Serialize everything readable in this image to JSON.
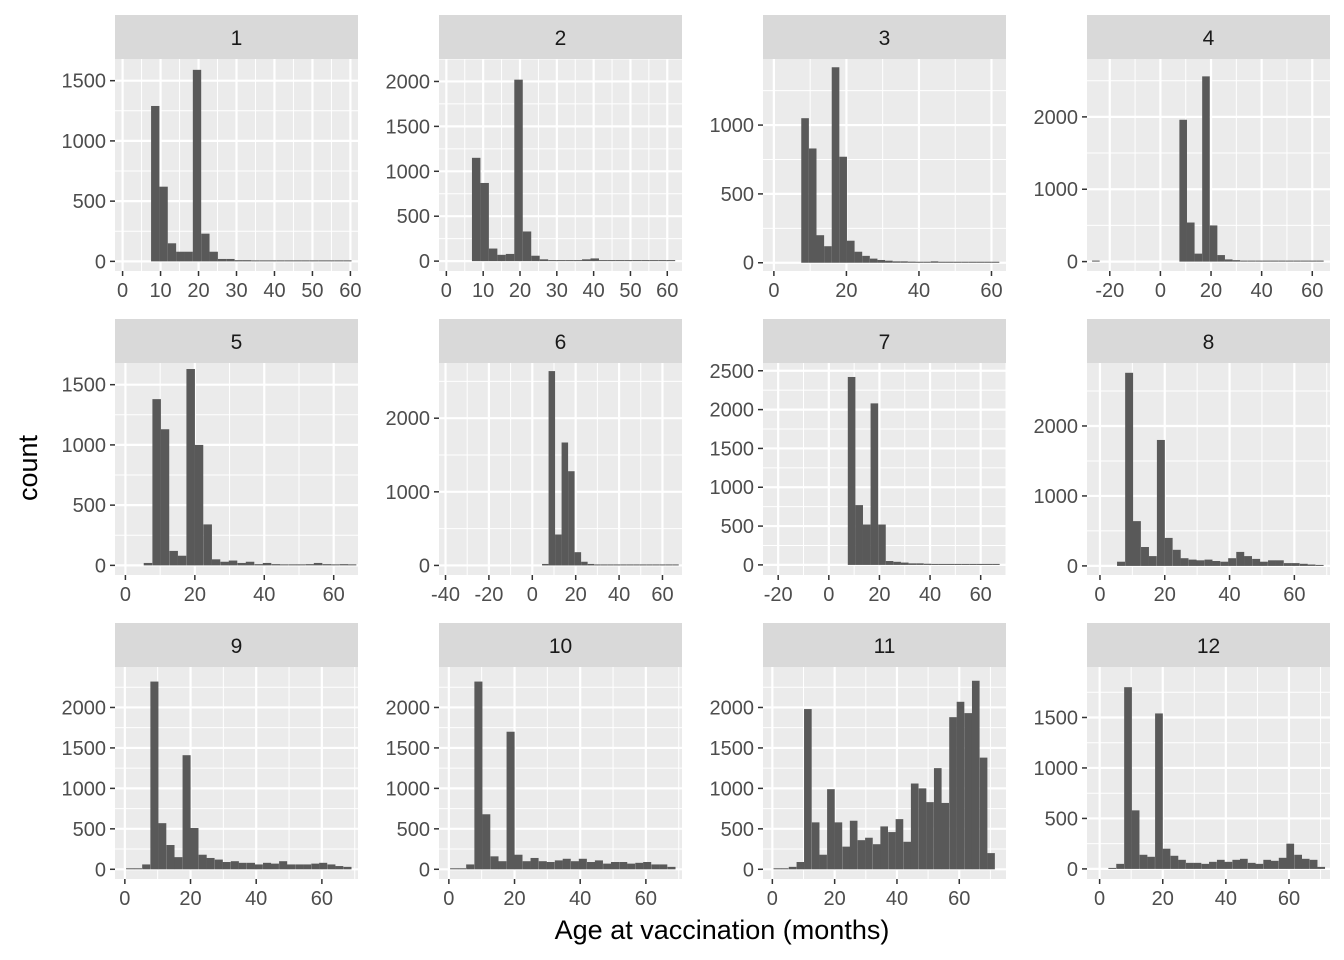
{
  "figure": {
    "xlabel": "Age at vaccination (months)",
    "ylabel": "count",
    "colors": {
      "panel_bg": "#ebebeb",
      "strip_bg": "#d9d9d9",
      "grid": "#ffffff",
      "bar": "#595959",
      "tick": "#333333",
      "tick_label": "#4d4d4d"
    }
  },
  "chart_data": [
    {
      "type": "bar",
      "facet": "1",
      "bin_width": 2.2,
      "xlim": [
        -2,
        62
      ],
      "ylim": [
        -80,
        1680
      ],
      "xticks": [
        0,
        10,
        20,
        30,
        40,
        50,
        60
      ],
      "yticks": [
        0,
        500,
        1000,
        1500
      ],
      "x": [
        8.6,
        10.8,
        13.0,
        15.2,
        17.4,
        19.6,
        21.8,
        24.0,
        26.2,
        28.4,
        30.6,
        32.8,
        35.0,
        37.2,
        39.4,
        41.6,
        43.8,
        46.0,
        48.2,
        50.4,
        52.6,
        54.8,
        57.0,
        59.2
      ],
      "values": [
        1290,
        620,
        150,
        80,
        80,
        1590,
        230,
        80,
        20,
        20,
        10,
        10,
        5,
        5,
        5,
        5,
        5,
        3,
        3,
        3,
        3,
        3,
        8,
        3
      ]
    },
    {
      "type": "bar",
      "facet": "2",
      "bin_width": 2.3,
      "xlim": [
        -2,
        64
      ],
      "ylim": [
        -110,
        2250
      ],
      "xticks": [
        0,
        10,
        20,
        30,
        40,
        50,
        60
      ],
      "yticks": [
        0,
        500,
        1000,
        1500,
        2000
      ],
      "x": [
        8.1,
        10.4,
        12.7,
        15.0,
        17.3,
        19.6,
        21.9,
        24.2,
        26.5,
        28.8,
        31.1,
        33.4,
        35.7,
        38.0,
        40.3,
        42.6,
        44.9,
        47.2,
        49.5,
        51.8,
        54.1,
        56.4,
        58.7,
        61.0
      ],
      "values": [
        1150,
        870,
        140,
        70,
        80,
        2020,
        330,
        60,
        20,
        10,
        10,
        10,
        5,
        20,
        30,
        10,
        5,
        5,
        5,
        3,
        3,
        3,
        3,
        5
      ]
    },
    {
      "type": "bar",
      "facet": "3",
      "bin_width": 2.1,
      "xlim": [
        -3,
        64
      ],
      "ylim": [
        -60,
        1480
      ],
      "xticks": [
        0,
        20,
        40,
        60
      ],
      "yticks": [
        0,
        500,
        1000
      ],
      "x": [
        8.6,
        10.7,
        12.8,
        14.9,
        17.0,
        19.1,
        21.2,
        23.3,
        25.4,
        27.5,
        29.6,
        31.7,
        33.8,
        35.9,
        38.0,
        40.1,
        42.2,
        44.3,
        46.4,
        48.5,
        50.6,
        52.7,
        54.8,
        56.9,
        59.0,
        61.1
      ],
      "values": [
        1050,
        830,
        200,
        120,
        1420,
        770,
        160,
        80,
        50,
        30,
        20,
        15,
        10,
        10,
        8,
        5,
        5,
        10,
        5,
        5,
        3,
        5,
        5,
        3,
        3,
        3
      ]
    },
    {
      "type": "bar",
      "facet": "4",
      "bin_width": 3.0,
      "xlim": [
        -29,
        67
      ],
      "ylim": [
        -130,
        2800
      ],
      "xticks": [
        -20,
        0,
        20,
        40,
        60
      ],
      "yticks": [
        0,
        1000,
        2000
      ],
      "x": [
        -25.5,
        9.0,
        12.0,
        15.0,
        18.0,
        21.0,
        24.0,
        27.0,
        30.0,
        33.0,
        36.0,
        39.0,
        42.0,
        45.0,
        48.0,
        51.0,
        54.0,
        57.0,
        60.0,
        63.0
      ],
      "values": [
        3,
        1960,
        540,
        110,
        2560,
        500,
        90,
        30,
        20,
        10,
        10,
        10,
        5,
        5,
        5,
        5,
        5,
        3,
        3,
        3
      ]
    },
    {
      "type": "bar",
      "facet": "5",
      "bin_width": 2.45,
      "xlim": [
        -3,
        67
      ],
      "ylim": [
        -80,
        1680
      ],
      "xticks": [
        0,
        20,
        40,
        60
      ],
      "yticks": [
        0,
        500,
        1000,
        1500
      ],
      "x": [
        6.5,
        9.0,
        11.4,
        13.9,
        16.3,
        18.8,
        21.2,
        23.7,
        26.1,
        28.6,
        31.0,
        33.5,
        35.9,
        38.4,
        40.8,
        43.3,
        45.7,
        48.2,
        50.6,
        53.1,
        55.5,
        58.0,
        60.4,
        62.9,
        65.3
      ],
      "values": [
        20,
        1380,
        1130,
        120,
        80,
        1630,
        1000,
        340,
        50,
        30,
        40,
        20,
        30,
        10,
        20,
        10,
        5,
        5,
        5,
        10,
        20,
        10,
        5,
        10,
        5
      ]
    },
    {
      "type": "bar",
      "facet": "6",
      "bin_width": 3.0,
      "xlim": [
        -43,
        69
      ],
      "ylim": [
        -130,
        2750
      ],
      "xticks": [
        -40,
        -20,
        0,
        20,
        40,
        60
      ],
      "yticks": [
        0,
        1000,
        2000
      ],
      "x": [
        6.0,
        9.0,
        12.0,
        15.0,
        18.0,
        21.0,
        24.0,
        27.0,
        30.0,
        33.0,
        36.0,
        39.0,
        42.0,
        45.0,
        48.0,
        51.0,
        54.0,
        57.0,
        60.0,
        63.0,
        66.0
      ],
      "values": [
        20,
        2640,
        420,
        1670,
        1280,
        180,
        50,
        20,
        10,
        10,
        10,
        5,
        5,
        10,
        10,
        5,
        5,
        5,
        10,
        5,
        3
      ]
    },
    {
      "type": "bar",
      "facet": "7",
      "bin_width": 3.0,
      "xlim": [
        -26,
        70
      ],
      "ylim": [
        -130,
        2600
      ],
      "xticks": [
        -20,
        0,
        20,
        40,
        60
      ],
      "yticks": [
        0,
        500,
        1000,
        1500,
        2000,
        2500
      ],
      "x": [
        9.0,
        12.0,
        15.0,
        18.0,
        21.0,
        24.0,
        27.0,
        30.0,
        33.0,
        36.0,
        39.0,
        42.0,
        45.0,
        48.0,
        51.0,
        54.0,
        57.0,
        60.0,
        63.0,
        66.0
      ],
      "values": [
        2420,
        770,
        520,
        2080,
        520,
        50,
        40,
        30,
        20,
        20,
        15,
        10,
        10,
        10,
        5,
        5,
        5,
        5,
        5,
        3
      ]
    },
    {
      "type": "bar",
      "facet": "8",
      "bin_width": 2.45,
      "xlim": [
        -4,
        71
      ],
      "ylim": [
        -130,
        2900
      ],
      "xticks": [
        0,
        20,
        40,
        60
      ],
      "yticks": [
        0,
        1000,
        2000
      ],
      "x": [
        6.5,
        9.0,
        11.4,
        13.9,
        16.3,
        18.8,
        21.2,
        23.7,
        26.1,
        28.6,
        31.0,
        33.5,
        35.9,
        38.4,
        40.8,
        43.3,
        45.7,
        48.2,
        50.6,
        53.1,
        55.5,
        58.0,
        60.4,
        62.9,
        65.3,
        67.8
      ],
      "values": [
        60,
        2760,
        640,
        270,
        140,
        1800,
        400,
        230,
        110,
        90,
        80,
        90,
        70,
        60,
        110,
        200,
        140,
        100,
        60,
        80,
        80,
        40,
        40,
        30,
        20,
        10
      ]
    },
    {
      "type": "bar",
      "facet": "9",
      "bin_width": 2.45,
      "xlim": [
        -3,
        71
      ],
      "ylim": [
        -120,
        2500
      ],
      "xticks": [
        0,
        20,
        40,
        60
      ],
      "yticks": [
        0,
        500,
        1000,
        1500,
        2000
      ],
      "x": [
        1.6,
        4.0,
        6.5,
        9.0,
        11.4,
        13.9,
        16.3,
        18.8,
        21.2,
        23.7,
        26.1,
        28.6,
        31.0,
        33.5,
        35.9,
        38.4,
        40.8,
        43.3,
        45.7,
        48.2,
        50.6,
        53.1,
        55.5,
        58.0,
        60.4,
        62.9,
        65.3,
        67.8
      ],
      "values": [
        5,
        10,
        60,
        2320,
        570,
        300,
        150,
        1410,
        510,
        180,
        140,
        120,
        90,
        100,
        80,
        80,
        60,
        80,
        70,
        100,
        60,
        60,
        60,
        70,
        80,
        60,
        40,
        30
      ]
    },
    {
      "type": "bar",
      "facet": "10",
      "bin_width": 2.45,
      "xlim": [
        -3,
        71
      ],
      "ylim": [
        -120,
        2500
      ],
      "xticks": [
        0,
        20,
        40,
        60
      ],
      "yticks": [
        0,
        500,
        1000,
        1500,
        2000
      ],
      "x": [
        1.6,
        4.0,
        6.5,
        9.0,
        11.4,
        13.9,
        16.3,
        18.8,
        21.2,
        23.7,
        26.1,
        28.6,
        31.0,
        33.5,
        35.9,
        38.4,
        40.8,
        43.3,
        45.7,
        48.2,
        50.6,
        53.1,
        55.5,
        58.0,
        60.4,
        62.9,
        65.3,
        67.8
      ],
      "values": [
        5,
        10,
        60,
        2320,
        680,
        160,
        100,
        1700,
        180,
        100,
        140,
        100,
        90,
        110,
        130,
        100,
        130,
        90,
        110,
        70,
        90,
        90,
        70,
        80,
        90,
        60,
        60,
        30
      ]
    },
    {
      "type": "bar",
      "facet": "11",
      "bin_width": 2.45,
      "xlim": [
        -3,
        75
      ],
      "ylim": [
        -120,
        2500
      ],
      "xticks": [
        0,
        20,
        40,
        60
      ],
      "yticks": [
        0,
        500,
        1000,
        1500,
        2000
      ],
      "x": [
        1.6,
        4.0,
        6.5,
        9.0,
        11.4,
        13.9,
        16.3,
        18.8,
        21.2,
        23.7,
        26.1,
        28.6,
        31.0,
        33.5,
        35.9,
        38.4,
        40.8,
        43.3,
        45.7,
        48.2,
        50.6,
        53.1,
        55.5,
        58.0,
        60.4,
        62.9,
        65.3,
        67.8,
        70.2
      ],
      "values": [
        5,
        10,
        30,
        90,
        1980,
        580,
        180,
        990,
        580,
        280,
        600,
        360,
        390,
        310,
        530,
        460,
        620,
        340,
        1060,
        1000,
        830,
        1250,
        820,
        1880,
        2070,
        1930,
        2330,
        1380,
        200
      ]
    },
    {
      "type": "bar",
      "facet": "12",
      "bin_width": 2.45,
      "xlim": [
        -4,
        73
      ],
      "ylim": [
        -100,
        2000
      ],
      "xticks": [
        0,
        20,
        40,
        60
      ],
      "yticks": [
        0,
        500,
        1000,
        1500
      ],
      "x": [
        4.0,
        6.5,
        9.0,
        11.4,
        13.9,
        16.3,
        18.8,
        21.2,
        23.7,
        26.1,
        28.6,
        31.0,
        33.5,
        35.9,
        38.4,
        40.8,
        43.3,
        45.7,
        48.2,
        50.6,
        53.1,
        55.5,
        58.0,
        60.4,
        62.9,
        65.3,
        67.8,
        70.2
      ],
      "values": [
        10,
        50,
        1800,
        580,
        140,
        120,
        1540,
        200,
        130,
        90,
        60,
        60,
        50,
        70,
        90,
        70,
        90,
        100,
        60,
        50,
        90,
        80,
        110,
        250,
        140,
        100,
        90,
        20
      ]
    }
  ]
}
